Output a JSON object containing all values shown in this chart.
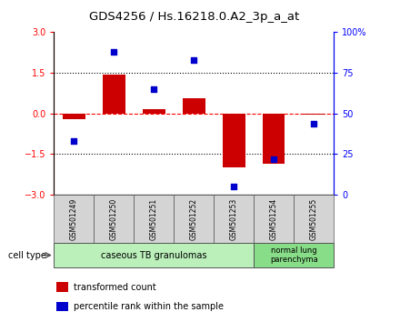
{
  "title": "GDS4256 / Hs.16218.0.A2_3p_a_at",
  "samples": [
    "GSM501249",
    "GSM501250",
    "GSM501251",
    "GSM501252",
    "GSM501253",
    "GSM501254",
    "GSM501255"
  ],
  "transformed_count": [
    -0.2,
    1.45,
    0.15,
    0.55,
    -2.0,
    -1.85,
    -0.05
  ],
  "percentile_rank": [
    33,
    88,
    65,
    83,
    5,
    22,
    44
  ],
  "ylim_left": [
    -3,
    3
  ],
  "ylim_right": [
    0,
    100
  ],
  "yticks_left": [
    -3,
    -1.5,
    0,
    1.5,
    3
  ],
  "yticks_right": [
    0,
    25,
    50,
    75,
    100
  ],
  "ytick_labels_right": [
    "0",
    "25",
    "50",
    "75",
    "100%"
  ],
  "bar_color": "#cc0000",
  "dot_color": "#0000cc",
  "group1_label": "caseous TB granulomas",
  "group2_label": "normal lung\nparenchyma",
  "group1_color": "#bbf0bb",
  "group2_color": "#88dd88",
  "sample_box_color": "#d4d4d4",
  "cell_type_label": "cell type",
  "legend_bar_label": "transformed count",
  "legend_dot_label": "percentile rank within the sample",
  "bar_width": 0.55
}
